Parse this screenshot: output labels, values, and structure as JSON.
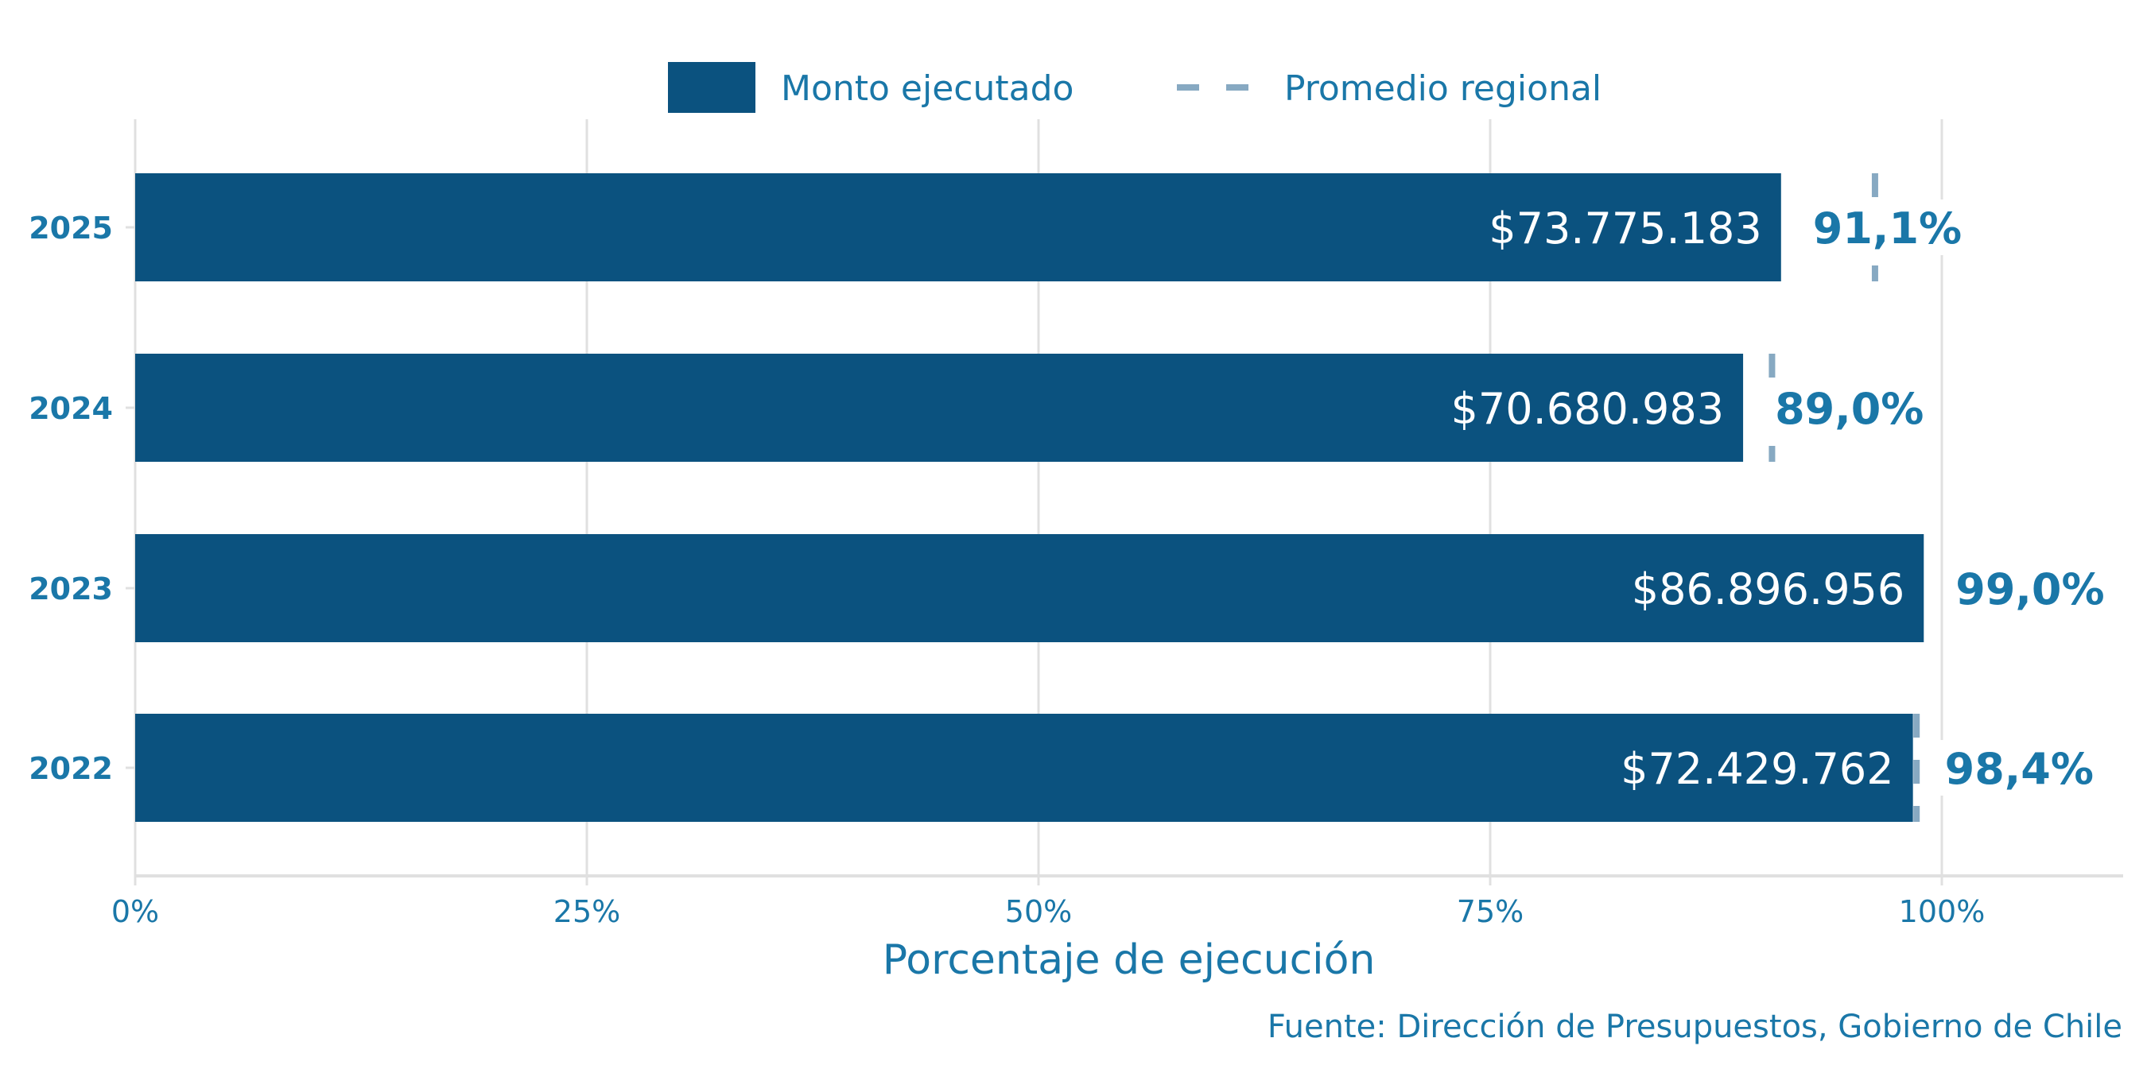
{
  "chart_data": {
    "type": "bar",
    "orientation": "horizontal",
    "categories": [
      "2025",
      "2024",
      "2023",
      "2022"
    ],
    "series": [
      {
        "name": "Monto ejecutado",
        "values": [
          91.1,
          89.0,
          99.0,
          98.4
        ],
        "value_labels": [
          "$73.775.183",
          "$70.680.983",
          "$86.896.956",
          "$72.429.762"
        ],
        "pct_labels": [
          "91,1%",
          "89,0%",
          "99,0%",
          "98,4%"
        ]
      },
      {
        "name": "Promedio regional",
        "values": [
          96.3,
          90.6,
          null,
          98.6
        ]
      }
    ],
    "xlabel": "Porcentaje de ejecución",
    "xlim": [
      0,
      110
    ],
    "xticks": [
      0,
      25,
      50,
      75,
      100
    ],
    "xtick_labels": [
      "0%",
      "25%",
      "50%",
      "75%",
      "100%"
    ],
    "legend_placement": "top-center",
    "grid": true,
    "source": "Fuente: Dirección de Presupuestos, Gobierno de Chile"
  },
  "colors": {
    "bar": "#0b527f",
    "avg": "#87a9c2",
    "text": "#1a77a8",
    "grid": "#e0e0e0"
  }
}
